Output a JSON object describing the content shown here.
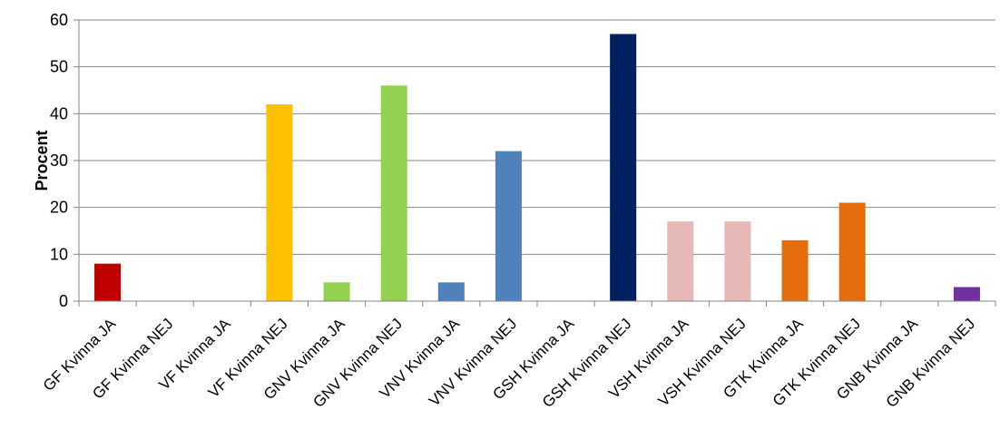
{
  "chart_data": {
    "type": "bar",
    "title": "",
    "xlabel": "",
    "ylabel": "Procent",
    "ylim": [
      0,
      60
    ],
    "yticks": [
      0,
      10,
      20,
      30,
      40,
      50,
      60
    ],
    "grid": true,
    "legend": "none",
    "categories": [
      "GF Kvinna JA",
      "GF Kvinna NEJ",
      "VF Kvinna JA",
      "VF Kvinna NEJ",
      "GNV Kvinna JA",
      "GNV Kvinna NEJ",
      "VNV Kvinna JA",
      "VNV Kvinna NEJ",
      "GSH Kvinna JA",
      "GSH Kvinna NEJ",
      "VSH Kvinna JA",
      "VSH Kvinna NEJ",
      "GTK Kvinna JA",
      "GTK Kvinna NEJ",
      "GNB Kvinna JA",
      "GNB Kvinna NEJ"
    ],
    "values": [
      8,
      0,
      0,
      42,
      4,
      46,
      4,
      32,
      0,
      57,
      17,
      17,
      13,
      21,
      0,
      3
    ],
    "colors": [
      "#C00000",
      "#C00000",
      "#FFC000",
      "#FFC000",
      "#92D050",
      "#92D050",
      "#4F81BD",
      "#4F81BD",
      "#002060",
      "#002060",
      "#E6B9B8",
      "#E6B9B8",
      "#E46C0A",
      "#E46C0A",
      "#7030A0",
      "#7030A0"
    ]
  }
}
